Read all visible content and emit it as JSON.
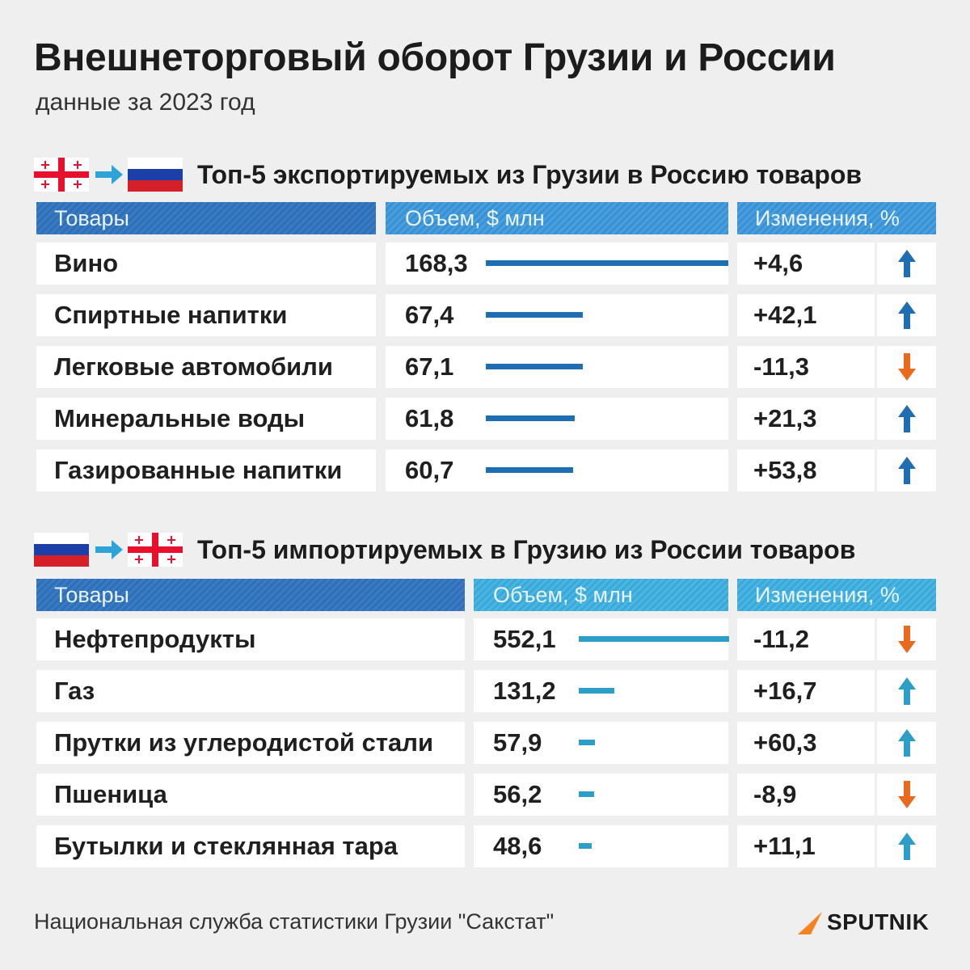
{
  "title": "Внешнеторговый оборот Грузии и России",
  "subtitle": "данные за 2023 год",
  "source": "Национальная служба статистики Грузии \"Сакстат\"",
  "logo_text": "SPUTNIK",
  "colors": {
    "export_bar": "#1f6db3",
    "import_bar": "#2b9fc7",
    "arrow_up_export": "#1f6db3",
    "arrow_up_import": "#2b9fc7",
    "arrow_down": "#ea6a1d",
    "logo_orange": "#f58220"
  },
  "chart_data": [
    {
      "type": "table",
      "title": "Топ-5 экспортируемых из Грузии в Россию товаров",
      "columns": [
        "Товары",
        "Объем, $ млн",
        "Изменения, %"
      ],
      "rows": [
        {
          "name": "Вино",
          "value": "168,3",
          "value_num": 168.3,
          "change": "+4,6",
          "direction": "up"
        },
        {
          "name": "Спиртные напитки",
          "value": "67,4",
          "value_num": 67.4,
          "change": "+42,1",
          "direction": "up"
        },
        {
          "name": "Легковые автомобили",
          "value": "67,1",
          "value_num": 67.1,
          "change": "-11,3",
          "direction": "down"
        },
        {
          "name": "Минеральные воды",
          "value": "61,8",
          "value_num": 61.8,
          "change": "+21,3",
          "direction": "up"
        },
        {
          "name": "Газированные напитки",
          "value": "60,7",
          "value_num": 60.7,
          "change": "+53,8",
          "direction": "up"
        }
      ]
    },
    {
      "type": "table",
      "title": "Топ-5 импортируемых в Грузию из России товаров",
      "columns": [
        "Товары",
        "Объем, $ млн",
        "Изменения, %"
      ],
      "rows": [
        {
          "name": "Нефтепродукты",
          "value": "552,1",
          "value_num": 552.1,
          "change": "-11,2",
          "direction": "down"
        },
        {
          "name": "Газ",
          "value": "131,2",
          "value_num": 131.2,
          "change": "+16,7",
          "direction": "up"
        },
        {
          "name": "Прутки из углеродистой стали",
          "value": "57,9",
          "value_num": 57.9,
          "change": "+60,3",
          "direction": "up"
        },
        {
          "name": "Пшеница",
          "value": "56,2",
          "value_num": 56.2,
          "change": "-8,9",
          "direction": "down"
        },
        {
          "name": "Бутылки и стеклянная тара",
          "value": "48,6",
          "value_num": 48.6,
          "change": "+11,1",
          "direction": "up"
        }
      ]
    }
  ]
}
